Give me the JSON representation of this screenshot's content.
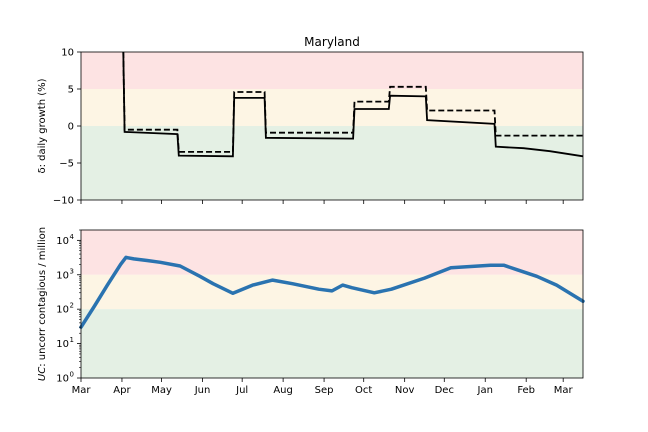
{
  "chart_data": [
    {
      "type": "line",
      "title": "Maryland",
      "ylabel": "δ: daily growth (%)",
      "ylim": [
        -10,
        10
      ],
      "yticks": [
        -10,
        -5,
        0,
        5,
        10
      ],
      "xlim_days": [
        0,
        380
      ],
      "zones": [
        {
          "from": 5,
          "to": 10,
          "color": "#fde3e3"
        },
        {
          "from": 0,
          "to": 5,
          "color": "#fdf5e4"
        },
        {
          "from": -10,
          "to": 0,
          "color": "#e4f0e4"
        }
      ],
      "series": [
        {
          "style": "solid",
          "color": "#000000",
          "points": [
            [
              32,
              10
            ],
            [
              33,
              -0.8
            ],
            [
              73,
              -1.1
            ],
            [
              74,
              -4.0
            ],
            [
              115,
              -4.1
            ],
            [
              116,
              3.8
            ],
            [
              139,
              3.8
            ],
            [
              140,
              -1.6
            ],
            [
              206,
              -1.7
            ],
            [
              207,
              2.3
            ],
            [
              233,
              2.3
            ],
            [
              234,
              4.1
            ],
            [
              261,
              4.0
            ],
            [
              262,
              0.8
            ],
            [
              313,
              0.3
            ],
            [
              314,
              -2.8
            ],
            [
              335,
              -3.0
            ],
            [
              355,
              -3.4
            ],
            [
              380,
              -4.1
            ]
          ]
        },
        {
          "style": "dashed",
          "color": "#000000",
          "points": [
            [
              32,
              10
            ],
            [
              33,
              -0.5
            ],
            [
              73,
              -0.5
            ],
            [
              74,
              -3.5
            ],
            [
              115,
              -3.5
            ],
            [
              116,
              4.6
            ],
            [
              139,
              4.6
            ],
            [
              140,
              -0.9
            ],
            [
              206,
              -0.9
            ],
            [
              207,
              3.3
            ],
            [
              233,
              3.3
            ],
            [
              234,
              5.3
            ],
            [
              261,
              5.3
            ],
            [
              262,
              2.1
            ],
            [
              313,
              2.1
            ],
            [
              314,
              -1.3
            ],
            [
              380,
              -1.3
            ]
          ]
        }
      ]
    },
    {
      "type": "line",
      "ylabel": "UC: uncorr contagious / million",
      "ylabel_italic": "UC",
      "ylabel_rest": ": uncorr contagious / million",
      "yscale": "log",
      "ylim": [
        1,
        20000
      ],
      "yticks": [
        {
          "value": 1,
          "base": "10",
          "exp": "0"
        },
        {
          "value": 10,
          "base": "10",
          "exp": "1"
        },
        {
          "value": 100,
          "base": "10",
          "exp": "2"
        },
        {
          "value": 1000,
          "base": "10",
          "exp": "3"
        },
        {
          "value": 10000,
          "base": "10",
          "exp": "4"
        }
      ],
      "zones": [
        {
          "from": 1000,
          "to": 20000,
          "color": "#fde3e3"
        },
        {
          "from": 100,
          "to": 1000,
          "color": "#fdf5e4"
        },
        {
          "from": 1,
          "to": 100,
          "color": "#e4f0e4"
        }
      ],
      "series": [
        {
          "color": "#2a73b0",
          "points": [
            [
              0,
              30
            ],
            [
              10,
              120
            ],
            [
              20,
              500
            ],
            [
              30,
              2000
            ],
            [
              34,
              3200
            ],
            [
              40,
              2900
            ],
            [
              50,
              2600
            ],
            [
              60,
              2300
            ],
            [
              75,
              1800
            ],
            [
              90,
              900
            ],
            [
              100,
              550
            ],
            [
              115,
              290
            ],
            [
              130,
              500
            ],
            [
              145,
              700
            ],
            [
              160,
              550
            ],
            [
              180,
              380
            ],
            [
              190,
              340
            ],
            [
              198,
              500
            ],
            [
              205,
              420
            ],
            [
              222,
              300
            ],
            [
              235,
              380
            ],
            [
              260,
              800
            ],
            [
              280,
              1600
            ],
            [
              310,
              1900
            ],
            [
              320,
              1900
            ],
            [
              330,
              1400
            ],
            [
              345,
              900
            ],
            [
              360,
              500
            ],
            [
              380,
              170
            ]
          ]
        }
      ]
    }
  ],
  "x_axis": {
    "tick_days": [
      0,
      31,
      61,
      92,
      122,
      153,
      184,
      214,
      245,
      275,
      306,
      337,
      365
    ],
    "tick_labels": [
      "Mar",
      "Apr",
      "May",
      "Jun",
      "Jul",
      "Aug",
      "Sep",
      "Oct",
      "Nov",
      "Dec",
      "Jan",
      "Feb",
      "Mar"
    ]
  }
}
